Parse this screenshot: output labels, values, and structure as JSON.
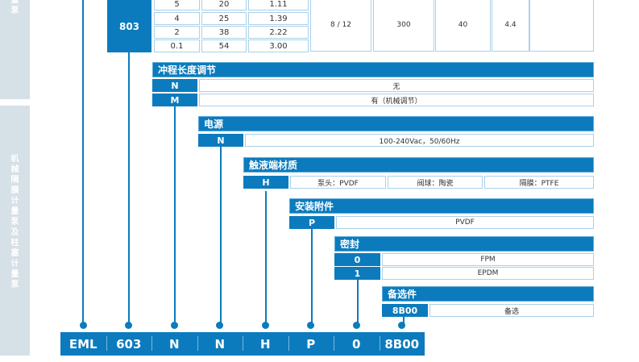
{
  "sidebar": {
    "top_label": "量泵",
    "main_label": "机械隔膜计量泵及柱塞计量泵"
  },
  "model_table": {
    "model": "803",
    "rows": [
      [
        "5",
        "20",
        "1.11"
      ],
      [
        "4",
        "25",
        "1.39"
      ],
      [
        "2",
        "38",
        "2.22"
      ],
      [
        "0.1",
        "54",
        "3.00"
      ]
    ],
    "merged": [
      "8 / 12",
      "300",
      "40",
      "4.4",
      ""
    ]
  },
  "sections": {
    "stroke": {
      "title": "冲程长度调节",
      "options": [
        {
          "code": "N",
          "desc": "无"
        },
        {
          "code": "M",
          "desc": "有（机械调节）"
        }
      ]
    },
    "power": {
      "title": "电源",
      "options": [
        {
          "code": "N",
          "desc": "100-240Vac，50/60Hz"
        }
      ]
    },
    "wetted": {
      "title": "触液端材质",
      "code": "H",
      "descs": [
        "泵头：PVDF",
        "阀球：陶瓷",
        "隔膜：PTFE"
      ]
    },
    "mount": {
      "title": "安装附件",
      "options": [
        {
          "code": "P",
          "desc": "PVDF"
        }
      ]
    },
    "seal": {
      "title": "密封",
      "options": [
        {
          "code": "0",
          "desc": "FPM"
        },
        {
          "code": "1",
          "desc": "EPDM"
        }
      ]
    },
    "option": {
      "title": "备选件",
      "options": [
        {
          "code": "8B00",
          "desc": "备选"
        }
      ]
    }
  },
  "model_code": [
    "EML",
    "603",
    "N",
    "N",
    "H",
    "P",
    "0",
    "8B00"
  ],
  "colors": {
    "accent": "#0b7bbd",
    "border": "#a9d1e9",
    "sidebar": "#d6e0e7"
  }
}
